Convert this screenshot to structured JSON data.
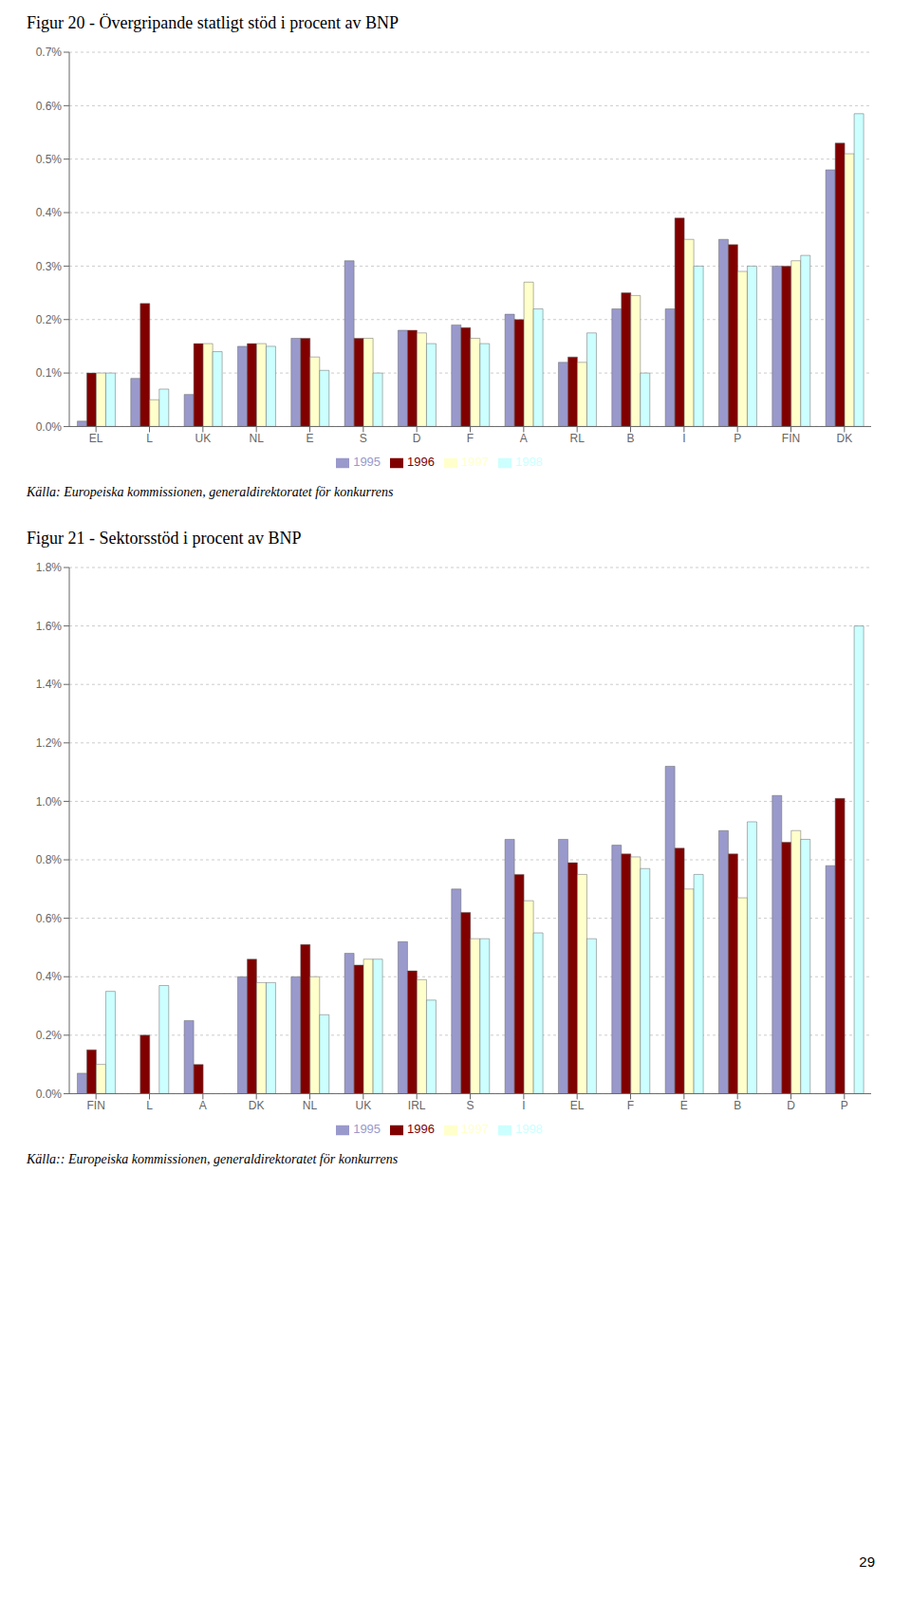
{
  "chart_data": [
    {
      "type": "bar",
      "title": "Figur 20  -  Övergripande statligt stöd i procent av BNP",
      "categories": [
        "EL",
        "L",
        "UK",
        "NL",
        "E",
        "S",
        "D",
        "F",
        "A",
        "RL",
        "B",
        "I",
        "P",
        "FIN",
        "DK"
      ],
      "series": [
        {
          "name": "1995",
          "color": "#9999CC",
          "values": [
            0.01,
            0.09,
            0.06,
            0.15,
            0.165,
            0.31,
            0.18,
            0.19,
            0.21,
            0.12,
            0.22,
            0.22,
            0.35,
            0.3,
            0.48
          ]
        },
        {
          "name": "1996",
          "color": "#800000",
          "values": [
            0.1,
            0.23,
            0.155,
            0.155,
            0.165,
            0.165,
            0.18,
            0.185,
            0.2,
            0.13,
            0.25,
            0.39,
            0.34,
            0.3,
            0.53
          ]
        },
        {
          "name": "1997",
          "color": "#FFFFCC",
          "values": [
            0.1,
            0.05,
            0.155,
            0.155,
            0.13,
            0.165,
            0.175,
            0.165,
            0.27,
            0.12,
            0.245,
            0.35,
            0.29,
            0.31,
            0.51
          ]
        },
        {
          "name": "1998",
          "color": "#CCFFFF",
          "values": [
            0.1,
            0.07,
            0.14,
            0.15,
            0.105,
            0.1,
            0.155,
            0.155,
            0.22,
            0.175,
            0.1,
            0.3,
            0.3,
            0.32,
            0.585
          ]
        }
      ],
      "ylim": [
        0,
        0.7
      ],
      "yticks": [
        {
          "value": 0,
          "label": "0.0%"
        },
        {
          "value": 0.1,
          "label": "0.1%"
        },
        {
          "value": 0.2,
          "label": "0.2%"
        },
        {
          "value": 0.3,
          "label": "0.3%"
        },
        {
          "value": 0.4,
          "label": "0.4%"
        },
        {
          "value": 0.5,
          "label": "0.5%"
        },
        {
          "value": 0.6,
          "label": "0.6%"
        },
        {
          "value": 0.7,
          "label": "0.7%"
        }
      ],
      "grid": true,
      "legend": "bottom",
      "annotations": [
        "Källa: Europeiska kommissionen, generaldirektoratet för konkurrens"
      ]
    },
    {
      "type": "bar",
      "title": "Figur 21  -  Sektorsstöd i procent av BNP",
      "categories": [
        "FIN",
        "L",
        "A",
        "DK",
        "NL",
        "UK",
        "IRL",
        "S",
        "I",
        "EL",
        "F",
        "E",
        "B",
        "D",
        "P"
      ],
      "series": [
        {
          "name": "1995",
          "color": "#9999CC",
          "values": [
            0.07,
            0.0,
            0.25,
            0.4,
            0.4,
            0.48,
            0.52,
            0.7,
            0.87,
            0.87,
            0.85,
            1.12,
            0.9,
            1.02,
            0.78
          ]
        },
        {
          "name": "1996",
          "color": "#800000",
          "values": [
            0.15,
            0.2,
            0.1,
            0.46,
            0.51,
            0.44,
            0.42,
            0.62,
            0.75,
            0.79,
            0.82,
            0.84,
            0.82,
            0.86,
            1.01
          ]
        },
        {
          "name": "1997",
          "color": "#FFFFCC",
          "values": [
            0.1,
            0.0,
            0.0,
            0.38,
            0.4,
            0.46,
            0.39,
            0.53,
            0.66,
            0.75,
            0.81,
            0.7,
            0.67,
            0.9,
            0.0
          ]
        },
        {
          "name": "1998",
          "color": "#CCFFFF",
          "values": [
            0.35,
            0.37,
            0.0,
            0.38,
            0.27,
            0.46,
            0.32,
            0.53,
            0.55,
            0.53,
            0.77,
            0.75,
            0.93,
            0.87,
            1.6
          ]
        }
      ],
      "ylim": [
        0,
        1.8
      ],
      "yticks": [
        {
          "value": 0,
          "label": "0.0%"
        },
        {
          "value": 0.2,
          "label": "0.2%"
        },
        {
          "value": 0.4,
          "label": "0.4%"
        },
        {
          "value": 0.6,
          "label": "0.6%"
        },
        {
          "value": 0.8,
          "label": "0.8%"
        },
        {
          "value": 1.0,
          "label": "1.0%"
        },
        {
          "value": 1.2,
          "label": "1.2%"
        },
        {
          "value": 1.4,
          "label": "1.4%"
        },
        {
          "value": 1.6,
          "label": "1.6%"
        },
        {
          "value": 1.8,
          "label": "1.8%"
        }
      ],
      "grid": true,
      "legend": "bottom",
      "annotations": [
        "Källa:: Europeiska kommissionen, generaldirektoratet för konkurrens",
        "29"
      ]
    }
  ]
}
